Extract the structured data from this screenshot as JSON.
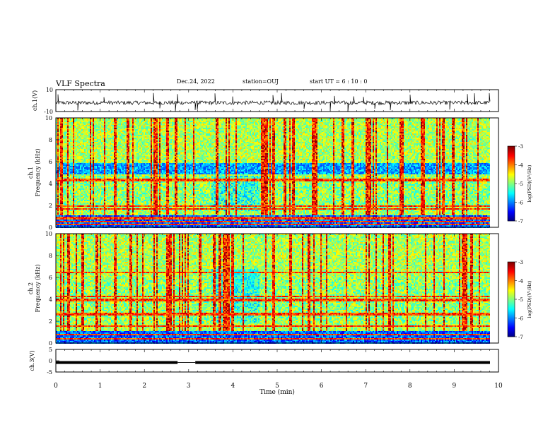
{
  "header": {
    "title": "VLF Spectra",
    "date": "Dec.24, 2022",
    "station": "station=OUJ",
    "start": "start  UT =   6  : 10 : 0"
  },
  "chart_data": [
    {
      "type": "line",
      "panel": "ch1-waveform",
      "ylabel": "ch.1(V)",
      "ylim": [
        -10,
        10
      ],
      "yticks": [
        "10",
        "-10"
      ],
      "xlim": [
        0,
        10
      ],
      "description_series": "noisy waveform around -2 V with sporadic spikes",
      "baseline": -2,
      "spike_times_min": [
        0.05,
        0.5,
        1.08,
        2.2,
        2.35,
        2.7,
        2.75,
        3.15,
        3.2,
        3.6,
        4.0,
        4.9,
        5.1,
        5.6,
        6.2,
        6.3,
        6.6,
        6.72,
        6.95,
        7.2,
        7.55,
        8.0,
        8.9,
        9.3,
        9.45,
        9.8
      ]
    },
    {
      "type": "heatmap",
      "panel": "ch1-spectrogram",
      "ylabel_line1": "ch.1",
      "ylabel_line2": "Frequency (kHz)",
      "ylim": [
        0,
        10
      ],
      "yticks": [
        "0",
        "2",
        "4",
        "6",
        "8",
        "10"
      ],
      "xlim": [
        0,
        9.83
      ],
      "colorbar": {
        "label": "log(PSD)(V²/Hz)",
        "range": [
          -7,
          -3
        ],
        "ticks": [
          "-3",
          "-4",
          "-5",
          "-6",
          "-7"
        ]
      },
      "features": {
        "low_band_kHz": [
          0,
          1.2
        ],
        "blue_band_kHz": [
          4.9,
          6.0
        ],
        "hiss_kHz": [
          1.5,
          4.8
        ],
        "quiet_interval_min": [
          3.5,
          4.6
        ],
        "lines_kHz": [
          0.3,
          0.6,
          0.9,
          1.7,
          2.0,
          4.3,
          4.5
        ]
      }
    },
    {
      "type": "heatmap",
      "panel": "ch2-spectrogram",
      "ylabel_line1": "ch.2",
      "ylabel_line2": "Frequency (kHz)",
      "ylim": [
        0,
        10
      ],
      "yticks": [
        "0",
        "2",
        "4",
        "6",
        "8",
        "10"
      ],
      "xlim": [
        0,
        9.83
      ],
      "colorbar": {
        "label": "log(PSD)(V²/Hz)",
        "range": [
          -7,
          -3
        ],
        "ticks": [
          "-3",
          "-4",
          "-5",
          "-6",
          "-7"
        ]
      },
      "features": {
        "low_band_kHz": [
          0,
          1.2
        ],
        "hiss_kHz": [
          2.0,
          6.0
        ],
        "quiet_interval_min": [
          3.5,
          4.6
        ],
        "lines_kHz": [
          0.5,
          0.8,
          1.6,
          2.7,
          4.0,
          4.3,
          6.5
        ]
      }
    },
    {
      "type": "line",
      "panel": "ch3-waveform",
      "ylabel": "ch.3(V)",
      "ylim": [
        -5,
        5
      ],
      "yticks": [
        "5",
        "0",
        "-5"
      ],
      "xlim": [
        0,
        10
      ],
      "xlabel": "Time (min)",
      "xticks": [
        "0",
        "1",
        "2",
        "3",
        "4",
        "5",
        "6",
        "7",
        "8",
        "9",
        "10"
      ],
      "level_V": -0.8,
      "dip_interval_min": [
        2.75,
        3.15
      ]
    }
  ]
}
